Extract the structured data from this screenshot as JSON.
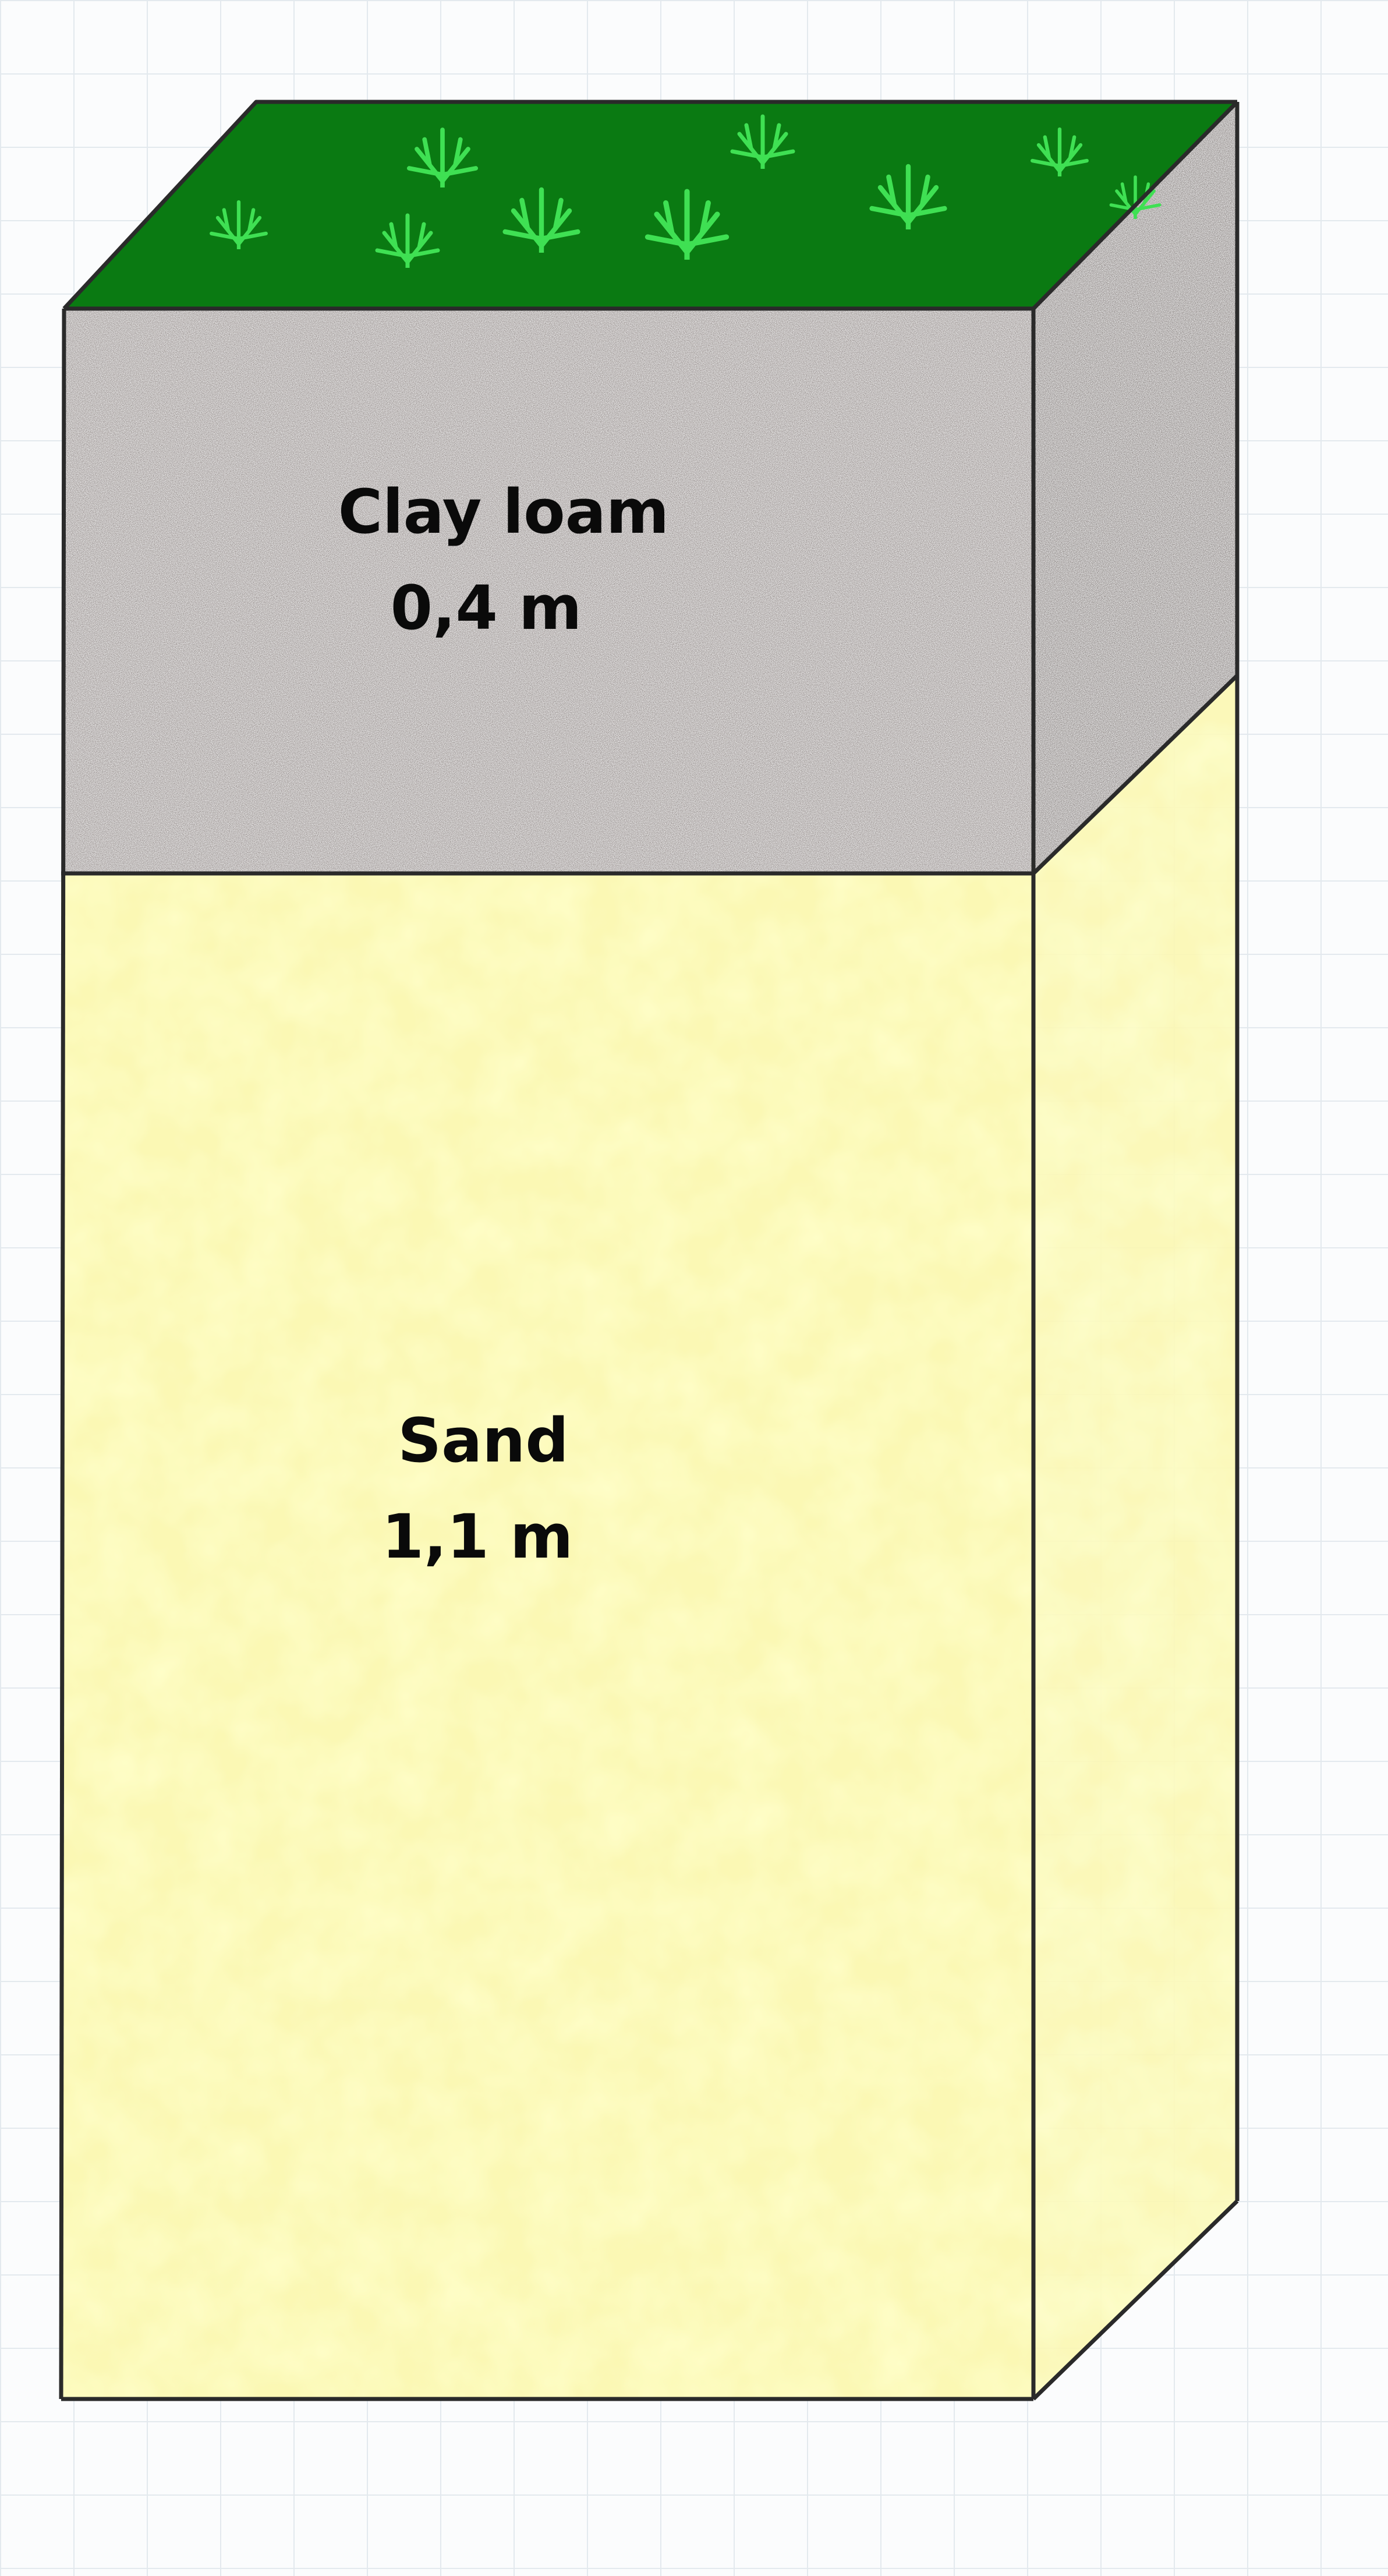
{
  "layers": [
    {
      "name": "Clay loam",
      "thickness": "0,4 m",
      "color": "#9a9290"
    },
    {
      "name": "Sand",
      "thickness": "1,1 m",
      "color": "#fbf8b4"
    }
  ],
  "surface": {
    "color": "#0a7a12",
    "plant_color": "#3fe053",
    "plant_icon": "grass-tuft-icon"
  },
  "outline_color": "#2a2a2a",
  "grid_color": "#e3e9ee"
}
